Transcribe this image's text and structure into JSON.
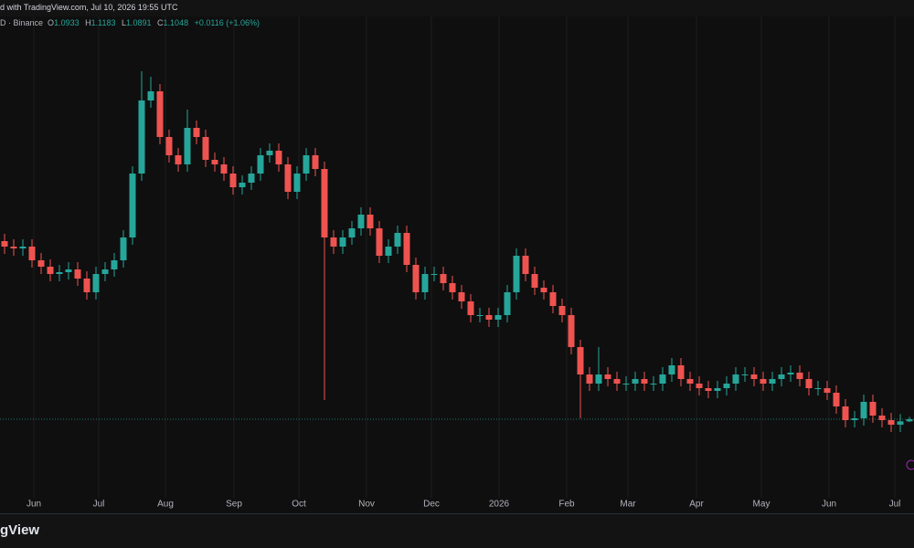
{
  "header": {
    "published": "d with TradingView.com, Jul 10, 2026 19:55 UTC",
    "symbol": "D · Binance",
    "ohlc_labels": [
      "O",
      "H",
      "L",
      "C"
    ],
    "change": "+0.0116 (+1.06%)"
  },
  "footer": {
    "logo": "gView"
  },
  "chart_data": {
    "type": "candlestick",
    "up_color": "#26a69a",
    "down_color": "#ef5350",
    "xlim": [
      0,
      100
    ],
    "ylim": [
      0.7,
      3.225
    ],
    "xticks": [
      {
        "value": 3.7,
        "label": "Jun"
      },
      {
        "value": 10.8,
        "label": "Jul"
      },
      {
        "value": 18.1,
        "label": "Aug"
      },
      {
        "value": 25.6,
        "label": "Sep"
      },
      {
        "value": 32.7,
        "label": "Oct"
      },
      {
        "value": 40.1,
        "label": "Nov"
      },
      {
        "value": 47.2,
        "label": "Dec"
      },
      {
        "value": 54.6,
        "label": "2026"
      },
      {
        "value": 62.0,
        "label": "Feb"
      },
      {
        "value": 68.7,
        "label": "Mar"
      },
      {
        "value": 76.2,
        "label": "Apr"
      },
      {
        "value": 83.3,
        "label": "May"
      },
      {
        "value": 90.7,
        "label": "Jun"
      },
      {
        "value": 97.9,
        "label": "Jul"
      }
    ],
    "grid": true,
    "open": [
      2.08,
      2.05,
      2.04,
      2.05,
      1.975,
      1.94,
      1.9,
      1.91,
      1.925,
      1.875,
      1.8,
      1.9,
      1.925,
      1.975,
      2.1,
      2.45,
      2.85,
      2.9,
      2.65,
      2.55,
      2.5,
      2.7,
      2.65,
      2.525,
      2.5,
      2.45,
      2.375,
      2.4,
      2.45,
      2.55,
      2.575,
      2.5,
      2.35,
      2.45,
      2.55,
      2.475,
      2.1,
      2.05,
      2.1,
      2.15,
      2.225,
      2.15,
      2.0,
      2.05,
      2.125,
      1.95,
      1.8,
      1.9,
      1.9,
      1.85,
      1.8,
      1.75,
      1.675,
      1.675,
      1.65,
      1.675,
      1.8,
      2.0,
      1.9,
      1.825,
      1.8,
      1.725,
      1.675,
      1.5,
      1.35,
      1.3,
      1.35,
      1.325,
      1.3,
      1.3,
      1.325,
      1.3,
      1.3,
      1.35,
      1.4,
      1.325,
      1.3,
      1.275,
      1.26,
      1.275,
      1.3,
      1.35,
      1.35,
      1.325,
      1.3,
      1.325,
      1.35,
      1.36,
      1.325,
      1.275,
      1.275,
      1.25,
      1.175,
      1.1,
      1.11,
      1.2,
      1.125,
      1.1,
      1.075,
      1.0933
    ],
    "high": [
      2.12,
      2.09,
      2.09,
      2.09,
      2.015,
      1.98,
      1.95,
      1.965,
      1.965,
      1.915,
      1.94,
      1.965,
      2.015,
      2.14,
      2.49,
      3.01,
      2.98,
      2.94,
      2.69,
      2.59,
      2.8,
      2.74,
      2.69,
      2.565,
      2.54,
      2.49,
      2.44,
      2.49,
      2.59,
      2.615,
      2.615,
      2.54,
      2.49,
      2.59,
      2.59,
      2.515,
      2.14,
      2.14,
      2.19,
      2.265,
      2.265,
      2.19,
      2.09,
      2.165,
      2.165,
      1.99,
      1.94,
      1.94,
      1.94,
      1.89,
      1.84,
      1.79,
      1.715,
      1.715,
      1.715,
      1.84,
      2.04,
      2.04,
      1.94,
      1.865,
      1.84,
      1.765,
      1.715,
      1.54,
      1.39,
      1.5,
      1.39,
      1.365,
      1.34,
      1.365,
      1.365,
      1.34,
      1.39,
      1.44,
      1.44,
      1.365,
      1.34,
      1.315,
      1.315,
      1.34,
      1.39,
      1.39,
      1.39,
      1.365,
      1.365,
      1.39,
      1.4,
      1.4,
      1.365,
      1.315,
      1.315,
      1.29,
      1.215,
      1.15,
      1.24,
      1.24,
      1.165,
      1.14,
      1.133,
      1.1183
    ],
    "low": [
      2.01,
      2.0,
      2.0,
      1.935,
      1.9,
      1.86,
      1.86,
      1.87,
      1.835,
      1.76,
      1.76,
      1.86,
      1.885,
      1.935,
      2.06,
      2.41,
      2.81,
      2.61,
      2.51,
      2.46,
      2.46,
      2.61,
      2.485,
      2.46,
      2.41,
      2.335,
      2.335,
      2.36,
      2.41,
      2.51,
      2.46,
      2.31,
      2.31,
      2.41,
      2.435,
      1.21,
      2.01,
      2.01,
      2.06,
      2.11,
      2.11,
      1.96,
      1.96,
      2.01,
      1.91,
      1.76,
      1.76,
      1.86,
      1.81,
      1.76,
      1.71,
      1.635,
      1.635,
      1.61,
      1.61,
      1.635,
      1.76,
      1.86,
      1.785,
      1.76,
      1.685,
      1.635,
      1.46,
      1.11,
      1.26,
      1.26,
      1.285,
      1.26,
      1.26,
      1.26,
      1.26,
      1.26,
      1.26,
      1.31,
      1.285,
      1.26,
      1.235,
      1.22,
      1.22,
      1.235,
      1.26,
      1.31,
      1.285,
      1.26,
      1.26,
      1.285,
      1.31,
      1.285,
      1.235,
      1.235,
      1.21,
      1.135,
      1.06,
      1.06,
      1.07,
      1.085,
      1.06,
      1.035,
      1.035,
      1.0891
    ],
    "close": [
      2.05,
      2.04,
      2.05,
      1.975,
      1.94,
      1.9,
      1.91,
      1.925,
      1.875,
      1.8,
      1.9,
      1.925,
      1.975,
      2.1,
      2.45,
      2.85,
      2.9,
      2.65,
      2.55,
      2.5,
      2.7,
      2.65,
      2.525,
      2.5,
      2.45,
      2.375,
      2.4,
      2.45,
      2.55,
      2.575,
      2.5,
      2.35,
      2.45,
      2.55,
      2.475,
      2.1,
      2.05,
      2.1,
      2.15,
      2.225,
      2.15,
      2.0,
      2.05,
      2.125,
      1.95,
      1.8,
      1.9,
      1.9,
      1.85,
      1.8,
      1.75,
      1.675,
      1.675,
      1.65,
      1.675,
      1.8,
      2.0,
      1.9,
      1.825,
      1.8,
      1.725,
      1.675,
      1.5,
      1.35,
      1.3,
      1.35,
      1.325,
      1.3,
      1.3,
      1.325,
      1.3,
      1.3,
      1.35,
      1.4,
      1.325,
      1.3,
      1.275,
      1.26,
      1.275,
      1.3,
      1.35,
      1.35,
      1.325,
      1.3,
      1.325,
      1.35,
      1.36,
      1.325,
      1.275,
      1.275,
      1.25,
      1.175,
      1.1,
      1.11,
      1.2,
      1.125,
      1.1,
      1.075,
      1.0933,
      1.1048
    ]
  }
}
